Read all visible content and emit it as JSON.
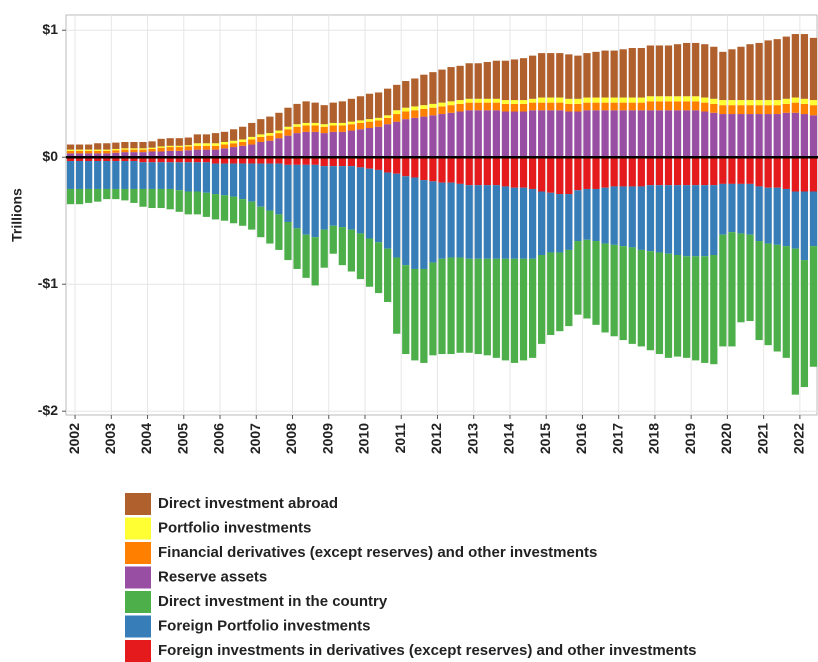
{
  "chart_data": {
    "type": "stacked_bar",
    "y_label": "Trillions",
    "categories": [
      "2002",
      null,
      null,
      null,
      "2003",
      null,
      null,
      null,
      "2004",
      null,
      null,
      null,
      "2005",
      null,
      null,
      null,
      "2006",
      null,
      null,
      null,
      "2007",
      null,
      null,
      null,
      "2008",
      null,
      null,
      null,
      "2009",
      null,
      null,
      null,
      "2010",
      null,
      null,
      null,
      "2011",
      null,
      null,
      null,
      "2012",
      null,
      null,
      null,
      "2013",
      null,
      null,
      null,
      "2014",
      null,
      null,
      null,
      "2015",
      null,
      null,
      null,
      "2016",
      null,
      null,
      null,
      "2017",
      null,
      null,
      null,
      "2018",
      null,
      null,
      null,
      "2019",
      null,
      null,
      null,
      "2020",
      null,
      null,
      null,
      "2021",
      null,
      null,
      null,
      "2022",
      null,
      null
    ],
    "ylim": [
      -2.03,
      1.12
    ],
    "yticks": [
      {
        "value": 1,
        "label": "$1"
      },
      {
        "value": 0,
        "label": "$0"
      },
      {
        "value": -1,
        "label": "-$1"
      },
      {
        "value": -2,
        "label": "-$2"
      }
    ],
    "grid": true,
    "series": [
      {
        "name": "Direct investment abroad",
        "color": "#b0602c",
        "values": [
          0.04,
          0.04,
          0.04,
          0.05,
          0.05,
          0.05,
          0.05,
          0.05,
          0.05,
          0.05,
          0.06,
          0.06,
          0.06,
          0.06,
          0.07,
          0.07,
          0.08,
          0.08,
          0.09,
          0.1,
          0.11,
          0.12,
          0.13,
          0.14,
          0.15,
          0.16,
          0.17,
          0.16,
          0.15,
          0.16,
          0.17,
          0.18,
          0.19,
          0.2,
          0.2,
          0.21,
          0.2,
          0.21,
          0.22,
          0.24,
          0.25,
          0.26,
          0.27,
          0.27,
          0.28,
          0.28,
          0.29,
          0.3,
          0.31,
          0.32,
          0.33,
          0.34,
          0.35,
          0.35,
          0.35,
          0.35,
          0.34,
          0.35,
          0.36,
          0.37,
          0.37,
          0.38,
          0.39,
          0.39,
          0.4,
          0.4,
          0.4,
          0.41,
          0.42,
          0.42,
          0.42,
          0.41,
          0.38,
          0.4,
          0.42,
          0.44,
          0.45,
          0.47,
          0.48,
          0.49,
          0.5,
          0.51,
          0.49
        ]
      },
      {
        "name": "Portfolio investments",
        "color": "#ffff33",
        "values": [
          0.01,
          0.01,
          0.01,
          0.01,
          0.01,
          0.01,
          0.01,
          0.01,
          0.01,
          0.01,
          0.01,
          0.01,
          0.01,
          0.01,
          0.02,
          0.02,
          0.02,
          0.02,
          0.02,
          0.02,
          0.02,
          0.02,
          0.02,
          0.02,
          0.02,
          0.02,
          0.02,
          0.02,
          0.02,
          0.02,
          0.02,
          0.02,
          0.02,
          0.02,
          0.02,
          0.02,
          0.03,
          0.03,
          0.03,
          0.03,
          0.03,
          0.03,
          0.03,
          0.03,
          0.03,
          0.03,
          0.03,
          0.03,
          0.03,
          0.03,
          0.03,
          0.03,
          0.04,
          0.04,
          0.04,
          0.04,
          0.04,
          0.04,
          0.04,
          0.04,
          0.04,
          0.04,
          0.04,
          0.04,
          0.04,
          0.04,
          0.04,
          0.04,
          0.04,
          0.04,
          0.04,
          0.04,
          0.04,
          0.04,
          0.04,
          0.04,
          0.04,
          0.04,
          0.04,
          0.04,
          0.04,
          0.04,
          0.04
        ]
      },
      {
        "name": "Financial derivatives (except reserves)  and other investments",
        "color": "#ff7f00",
        "values": [
          0.02,
          0.02,
          0.02,
          0.02,
          0.02,
          0.02,
          0.02,
          0.02,
          0.02,
          0.02,
          0.03,
          0.03,
          0.03,
          0.03,
          0.03,
          0.03,
          0.03,
          0.03,
          0.03,
          0.03,
          0.04,
          0.04,
          0.04,
          0.04,
          0.05,
          0.05,
          0.05,
          0.05,
          0.05,
          0.05,
          0.05,
          0.05,
          0.05,
          0.05,
          0.05,
          0.05,
          0.06,
          0.06,
          0.06,
          0.06,
          0.06,
          0.06,
          0.06,
          0.06,
          0.06,
          0.06,
          0.06,
          0.06,
          0.06,
          0.06,
          0.06,
          0.06,
          0.06,
          0.06,
          0.06,
          0.06,
          0.06,
          0.06,
          0.06,
          0.06,
          0.06,
          0.06,
          0.06,
          0.06,
          0.07,
          0.07,
          0.07,
          0.07,
          0.07,
          0.07,
          0.07,
          0.07,
          0.07,
          0.07,
          0.07,
          0.07,
          0.07,
          0.07,
          0.07,
          0.07,
          0.08,
          0.08,
          0.08
        ]
      },
      {
        "name": "Reserve assets",
        "color": "#984ea3",
        "values": [
          0.03,
          0.03,
          0.03,
          0.03,
          0.03,
          0.035,
          0.04,
          0.04,
          0.04,
          0.045,
          0.045,
          0.05,
          0.05,
          0.055,
          0.06,
          0.06,
          0.06,
          0.07,
          0.08,
          0.09,
          0.1,
          0.12,
          0.13,
          0.15,
          0.17,
          0.19,
          0.2,
          0.2,
          0.19,
          0.2,
          0.2,
          0.21,
          0.22,
          0.23,
          0.24,
          0.26,
          0.28,
          0.3,
          0.31,
          0.32,
          0.33,
          0.34,
          0.35,
          0.36,
          0.37,
          0.37,
          0.37,
          0.37,
          0.36,
          0.36,
          0.36,
          0.37,
          0.37,
          0.37,
          0.37,
          0.36,
          0.36,
          0.37,
          0.37,
          0.37,
          0.37,
          0.37,
          0.37,
          0.37,
          0.37,
          0.37,
          0.37,
          0.37,
          0.37,
          0.37,
          0.36,
          0.35,
          0.34,
          0.34,
          0.34,
          0.34,
          0.34,
          0.34,
          0.34,
          0.35,
          0.35,
          0.34,
          0.33
        ]
      },
      {
        "name": "Direct investment in the country",
        "color": "#4daf4a",
        "values": [
          -0.12,
          -0.12,
          -0.11,
          -0.1,
          -0.08,
          -0.08,
          -0.09,
          -0.11,
          -0.14,
          -0.15,
          -0.15,
          -0.16,
          -0.17,
          -0.18,
          -0.18,
          -0.19,
          -0.2,
          -0.2,
          -0.21,
          -0.21,
          -0.22,
          -0.24,
          -0.26,
          -0.28,
          -0.3,
          -0.32,
          -0.34,
          -0.38,
          -0.3,
          -0.22,
          -0.3,
          -0.33,
          -0.36,
          -0.38,
          -0.4,
          -0.42,
          -0.6,
          -0.7,
          -0.72,
          -0.74,
          -0.73,
          -0.75,
          -0.76,
          -0.75,
          -0.74,
          -0.75,
          -0.76,
          -0.78,
          -0.8,
          -0.82,
          -0.8,
          -0.78,
          -0.7,
          -0.65,
          -0.62,
          -0.6,
          -0.58,
          -0.62,
          -0.66,
          -0.7,
          -0.72,
          -0.74,
          -0.76,
          -0.76,
          -0.78,
          -0.8,
          -0.82,
          -0.8,
          -0.8,
          -0.82,
          -0.84,
          -0.86,
          -0.88,
          -0.9,
          -0.7,
          -0.68,
          -0.78,
          -0.8,
          -0.84,
          -0.88,
          -1.15,
          -1.0,
          -0.95
        ]
      },
      {
        "name": "Foreign Portfolio investments",
        "color": "#377eb8",
        "values": [
          -0.22,
          -0.22,
          -0.22,
          -0.22,
          -0.22,
          -0.22,
          -0.22,
          -0.22,
          -0.21,
          -0.21,
          -0.21,
          -0.21,
          -0.22,
          -0.23,
          -0.23,
          -0.24,
          -0.24,
          -0.25,
          -0.26,
          -0.28,
          -0.3,
          -0.34,
          -0.37,
          -0.4,
          -0.45,
          -0.5,
          -0.55,
          -0.57,
          -0.5,
          -0.47,
          -0.48,
          -0.5,
          -0.52,
          -0.55,
          -0.57,
          -0.6,
          -0.66,
          -0.7,
          -0.72,
          -0.7,
          -0.64,
          -0.6,
          -0.59,
          -0.58,
          -0.58,
          -0.58,
          -0.58,
          -0.58,
          -0.57,
          -0.56,
          -0.56,
          -0.55,
          -0.5,
          -0.47,
          -0.46,
          -0.44,
          -0.4,
          -0.4,
          -0.41,
          -0.44,
          -0.46,
          -0.47,
          -0.48,
          -0.5,
          -0.52,
          -0.53,
          -0.54,
          -0.55,
          -0.56,
          -0.56,
          -0.56,
          -0.55,
          -0.4,
          -0.38,
          -0.39,
          -0.4,
          -0.43,
          -0.44,
          -0.45,
          -0.45,
          -0.45,
          -0.54,
          -0.43
        ]
      },
      {
        "name": "Foreign investments in derivatives (except reserves) and other investments",
        "color": "#e41a1c",
        "values": [
          -0.03,
          -0.03,
          -0.03,
          -0.03,
          -0.03,
          -0.03,
          -0.03,
          -0.03,
          -0.04,
          -0.04,
          -0.04,
          -0.04,
          -0.04,
          -0.04,
          -0.04,
          -0.04,
          -0.05,
          -0.05,
          -0.05,
          -0.05,
          -0.05,
          -0.05,
          -0.05,
          -0.05,
          -0.06,
          -0.06,
          -0.06,
          -0.06,
          -0.07,
          -0.07,
          -0.07,
          -0.07,
          -0.08,
          -0.09,
          -0.1,
          -0.12,
          -0.13,
          -0.15,
          -0.16,
          -0.18,
          -0.19,
          -0.2,
          -0.2,
          -0.21,
          -0.22,
          -0.22,
          -0.22,
          -0.22,
          -0.23,
          -0.24,
          -0.24,
          -0.25,
          -0.27,
          -0.28,
          -0.29,
          -0.29,
          -0.26,
          -0.25,
          -0.25,
          -0.24,
          -0.23,
          -0.23,
          -0.23,
          -0.23,
          -0.22,
          -0.22,
          -0.22,
          -0.22,
          -0.22,
          -0.22,
          -0.22,
          -0.22,
          -0.21,
          -0.21,
          -0.21,
          -0.21,
          -0.23,
          -0.24,
          -0.24,
          -0.25,
          -0.27,
          -0.27,
          -0.27
        ]
      }
    ]
  }
}
